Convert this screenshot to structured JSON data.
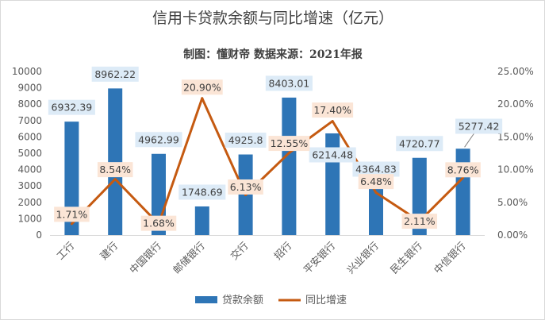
{
  "chart_data": {
    "type": "bar+line",
    "title": "信用卡贷款余额与同比增速（亿元）",
    "subtitle": "制图：懂财帝  数据来源：2021年报",
    "categories": [
      "工行",
      "建行",
      "中国银行",
      "邮储银行",
      "交行",
      "招行",
      "平安银行",
      "兴业银行",
      "民生银行",
      "中信银行"
    ],
    "series": [
      {
        "name": "贷款余额",
        "type": "bar",
        "axis": "left",
        "color": "#2e75b6",
        "values": [
          6932.39,
          8962.22,
          4962.99,
          1748.69,
          4925.8,
          8403.01,
          6214.48,
          4364.83,
          4720.77,
          5277.42
        ],
        "labels": [
          "6932.39",
          "8962.22",
          "4962.99",
          "1748.69",
          "4925.8",
          "8403.01",
          "6214.48",
          "4364.83",
          "4720.77",
          "5277.42"
        ]
      },
      {
        "name": "同比增速",
        "type": "line",
        "axis": "right",
        "color": "#c55a11",
        "values": [
          1.71,
          8.54,
          1.68,
          20.9,
          6.13,
          12.55,
          17.4,
          6.48,
          2.11,
          8.76
        ],
        "labels": [
          "1.71%",
          "8.54%",
          "1.68%",
          "20.90%",
          "6.13%",
          "12.55%",
          "17.40%",
          "6.48%",
          "2.11%",
          "8.76%"
        ]
      }
    ],
    "y_left": {
      "ylim": [
        0,
        10000
      ],
      "ticks": [
        "0",
        "1000",
        "2000",
        "3000",
        "4000",
        "5000",
        "6000",
        "7000",
        "8000",
        "9000",
        "10000"
      ]
    },
    "y_right": {
      "ylim": [
        0,
        25
      ],
      "ticks": [
        "0.00%",
        "5.00%",
        "10.00%",
        "15.00%",
        "20.00%",
        "25.00%"
      ]
    },
    "grid": false,
    "legend_position": "bottom"
  }
}
